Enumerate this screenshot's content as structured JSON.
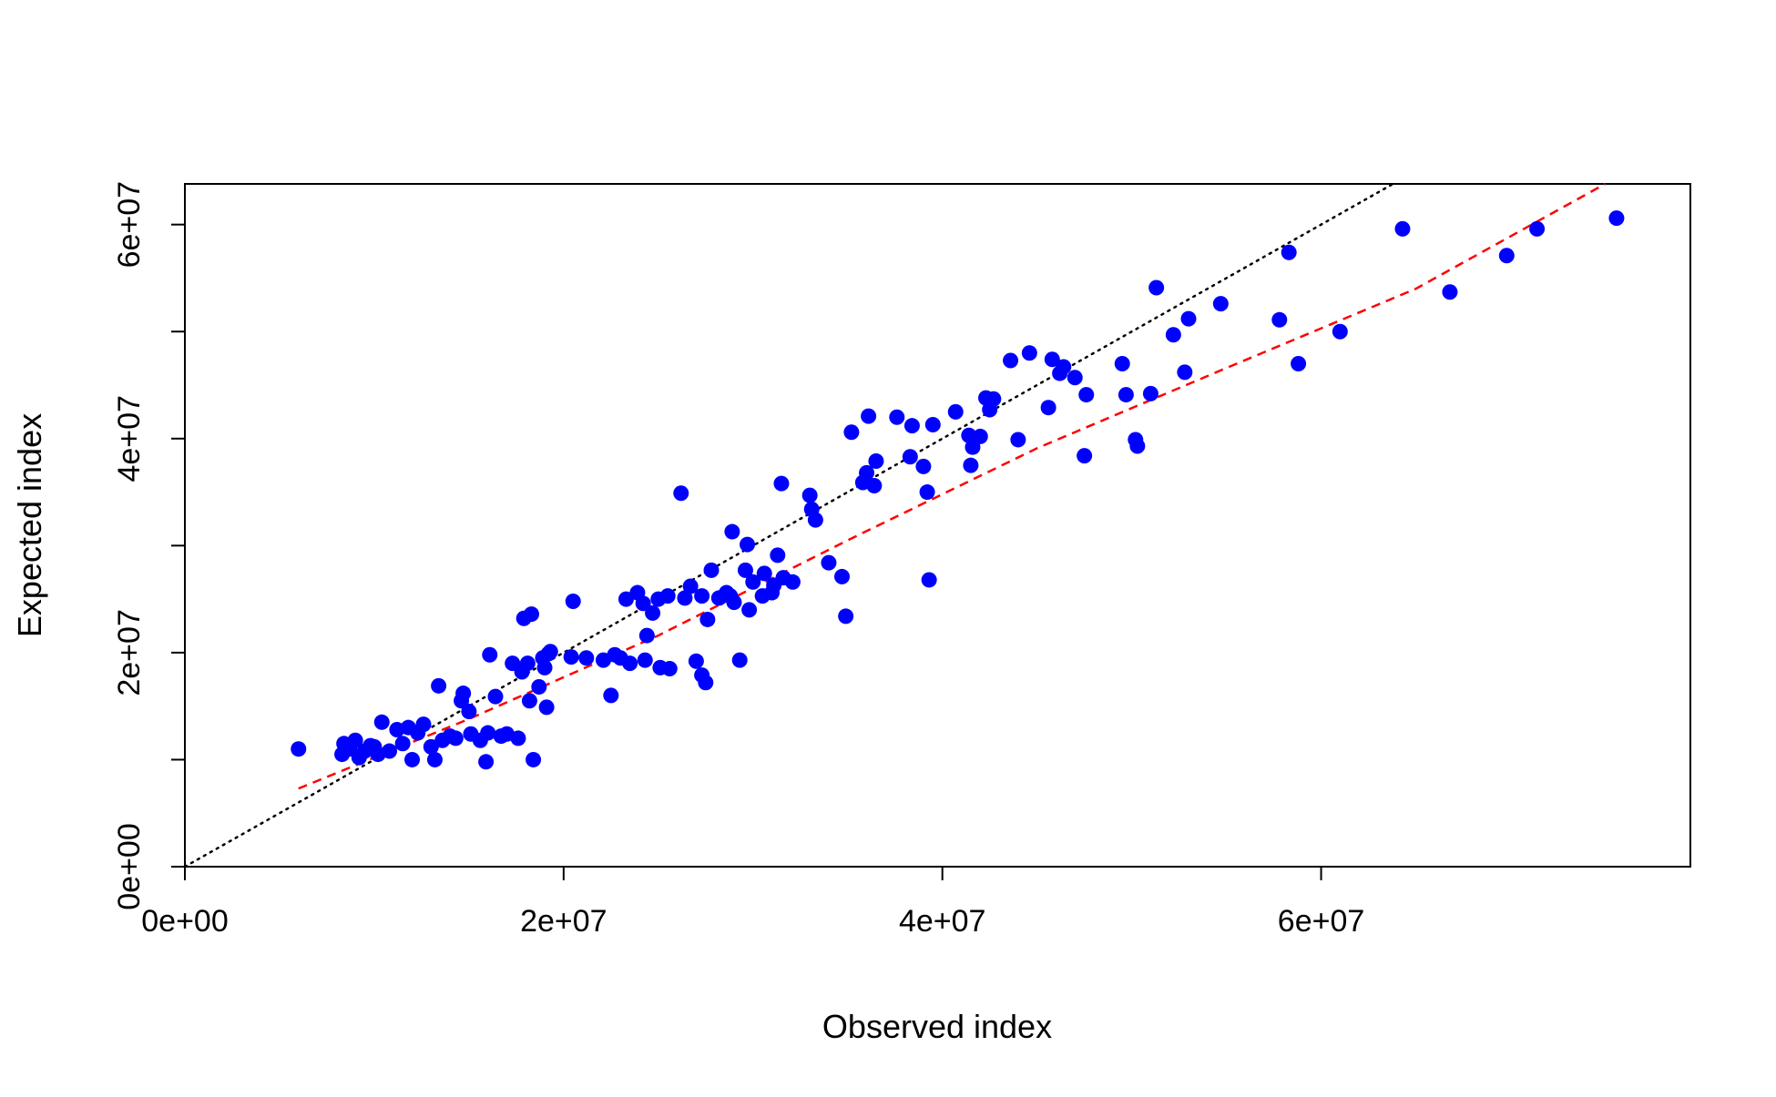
{
  "chart_data": {
    "type": "scatter",
    "xlabel": "Observed index",
    "ylabel": "Expected index",
    "xlim": [
      0,
      79500000
    ],
    "ylim": [
      0,
      63800000
    ],
    "x_ticks": [
      {
        "value": 0,
        "label": "0e+00"
      },
      {
        "value": 20000000,
        "label": "2e+07"
      },
      {
        "value": 40000000,
        "label": "4e+07"
      },
      {
        "value": 60000000,
        "label": "6e+07"
      }
    ],
    "y_ticks": [
      {
        "value": 0,
        "label": "0e+00"
      },
      {
        "value": 10000000,
        "label": ""
      },
      {
        "value": 20000000,
        "label": "2e+07"
      },
      {
        "value": 30000000,
        "label": ""
      },
      {
        "value": 40000000,
        "label": "4e+07"
      },
      {
        "value": 50000000,
        "label": ""
      },
      {
        "value": 60000000,
        "label": "6e+07"
      }
    ],
    "point_color": "#0000ff",
    "identity_line": {
      "color": "#000000",
      "style": "dotted",
      "slope": 1,
      "intercept": 0
    },
    "fit_line": {
      "color": "#ff0000",
      "style": "dashed",
      "points": [
        [
          6000000,
          7300000
        ],
        [
          15000000,
          13800000
        ],
        [
          25000000,
          21600000
        ],
        [
          35000000,
          30500000
        ],
        [
          45000000,
          39100000
        ],
        [
          55000000,
          46600000
        ],
        [
          65000000,
          54000000
        ],
        [
          75000000,
          63800000
        ]
      ]
    },
    "points": [
      [
        6000000,
        11000000
      ],
      [
        8300000,
        10500000
      ],
      [
        8400000,
        11500000
      ],
      [
        8700000,
        11000000
      ],
      [
        9000000,
        11800000
      ],
      [
        9200000,
        10200000
      ],
      [
        9500000,
        10800000
      ],
      [
        9800000,
        11300000
      ],
      [
        10000000,
        11200000
      ],
      [
        10200000,
        10500000
      ],
      [
        10400000,
        13500000
      ],
      [
        10800000,
        10800000
      ],
      [
        11200000,
        12800000
      ],
      [
        11500000,
        11500000
      ],
      [
        11800000,
        13000000
      ],
      [
        12000000,
        10000000
      ],
      [
        12300000,
        12500000
      ],
      [
        12600000,
        13300000
      ],
      [
        13000000,
        11200000
      ],
      [
        13200000,
        10000000
      ],
      [
        13400000,
        16900000
      ],
      [
        13600000,
        11800000
      ],
      [
        14000000,
        12200000
      ],
      [
        14300000,
        12000000
      ],
      [
        14600000,
        15500000
      ],
      [
        14700000,
        16200000
      ],
      [
        15000000,
        14500000
      ],
      [
        15100000,
        12400000
      ],
      [
        15600000,
        11800000
      ],
      [
        15900000,
        9800000
      ],
      [
        16000000,
        12500000
      ],
      [
        16100000,
        19800000
      ],
      [
        16400000,
        15900000
      ],
      [
        16700000,
        12200000
      ],
      [
        17000000,
        12400000
      ],
      [
        17300000,
        19000000
      ],
      [
        17600000,
        12000000
      ],
      [
        17800000,
        18200000
      ],
      [
        17900000,
        23200000
      ],
      [
        18100000,
        19000000
      ],
      [
        18200000,
        15500000
      ],
      [
        18300000,
        23600000
      ],
      [
        18400000,
        10000000
      ],
      [
        18700000,
        16800000
      ],
      [
        18900000,
        19500000
      ],
      [
        19000000,
        18600000
      ],
      [
        19100000,
        14900000
      ],
      [
        19200000,
        19900000
      ],
      [
        19300000,
        20100000
      ],
      [
        20400000,
        19600000
      ],
      [
        20500000,
        24800000
      ],
      [
        21200000,
        19500000
      ],
      [
        22100000,
        19300000
      ],
      [
        22500000,
        16000000
      ],
      [
        22700000,
        19800000
      ],
      [
        23000000,
        19500000
      ],
      [
        23300000,
        25000000
      ],
      [
        23500000,
        19000000
      ],
      [
        23900000,
        25600000
      ],
      [
        24200000,
        24600000
      ],
      [
        24300000,
        19300000
      ],
      [
        24400000,
        21600000
      ],
      [
        24700000,
        23700000
      ],
      [
        25000000,
        25000000
      ],
      [
        25100000,
        18600000
      ],
      [
        25500000,
        25300000
      ],
      [
        25600000,
        18500000
      ],
      [
        26200000,
        34900000
      ],
      [
        26400000,
        25100000
      ],
      [
        26700000,
        26200000
      ],
      [
        27000000,
        19200000
      ],
      [
        27300000,
        17900000
      ],
      [
        27300000,
        25300000
      ],
      [
        27500000,
        17200000
      ],
      [
        27600000,
        23100000
      ],
      [
        27800000,
        27700000
      ],
      [
        28200000,
        25100000
      ],
      [
        28600000,
        25600000
      ],
      [
        28800000,
        25300000
      ],
      [
        28900000,
        31300000
      ],
      [
        29000000,
        24700000
      ],
      [
        29300000,
        19300000
      ],
      [
        29600000,
        27700000
      ],
      [
        29700000,
        30100000
      ],
      [
        29800000,
        24000000
      ],
      [
        30000000,
        26600000
      ],
      [
        30500000,
        25300000
      ],
      [
        30600000,
        27400000
      ],
      [
        31000000,
        25600000
      ],
      [
        31100000,
        26300000
      ],
      [
        31300000,
        29100000
      ],
      [
        31500000,
        35800000
      ],
      [
        31600000,
        27000000
      ],
      [
        32100000,
        26600000
      ],
      [
        33000000,
        34700000
      ],
      [
        33100000,
        33400000
      ],
      [
        33300000,
        32400000
      ],
      [
        34000000,
        28400000
      ],
      [
        34700000,
        27100000
      ],
      [
        34900000,
        23400000
      ],
      [
        35200000,
        40600000
      ],
      [
        35800000,
        35900000
      ],
      [
        36000000,
        36800000
      ],
      [
        36100000,
        42100000
      ],
      [
        36400000,
        35600000
      ],
      [
        36500000,
        37900000
      ],
      [
        37600000,
        42000000
      ],
      [
        38300000,
        38300000
      ],
      [
        38400000,
        41200000
      ],
      [
        39000000,
        37400000
      ],
      [
        39200000,
        35000000
      ],
      [
        39300000,
        26800000
      ],
      [
        39500000,
        41300000
      ],
      [
        40700000,
        42500000
      ],
      [
        41400000,
        40300000
      ],
      [
        41500000,
        37500000
      ],
      [
        41600000,
        39200000
      ],
      [
        42000000,
        40200000
      ],
      [
        42300000,
        43800000
      ],
      [
        42500000,
        42700000
      ],
      [
        42700000,
        43700000
      ],
      [
        43600000,
        47300000
      ],
      [
        44000000,
        39900000
      ],
      [
        44600000,
        48000000
      ],
      [
        45600000,
        42900000
      ],
      [
        45800000,
        47400000
      ],
      [
        46200000,
        46100000
      ],
      [
        46400000,
        46700000
      ],
      [
        47000000,
        45700000
      ],
      [
        47500000,
        38400000
      ],
      [
        47600000,
        44100000
      ],
      [
        49500000,
        47000000
      ],
      [
        49700000,
        44100000
      ],
      [
        50200000,
        39900000
      ],
      [
        50300000,
        39300000
      ],
      [
        51000000,
        44200000
      ],
      [
        51300000,
        54100000
      ],
      [
        52200000,
        49700000
      ],
      [
        52800000,
        46200000
      ],
      [
        53000000,
        51200000
      ],
      [
        54700000,
        52600000
      ],
      [
        57800000,
        51100000
      ],
      [
        58300000,
        57400000
      ],
      [
        58800000,
        47000000
      ],
      [
        61000000,
        50000000
      ],
      [
        64300000,
        59600000
      ],
      [
        66800000,
        53700000
      ],
      [
        69800000,
        57100000
      ],
      [
        71400000,
        59600000
      ],
      [
        75600000,
        60600000
      ]
    ]
  }
}
